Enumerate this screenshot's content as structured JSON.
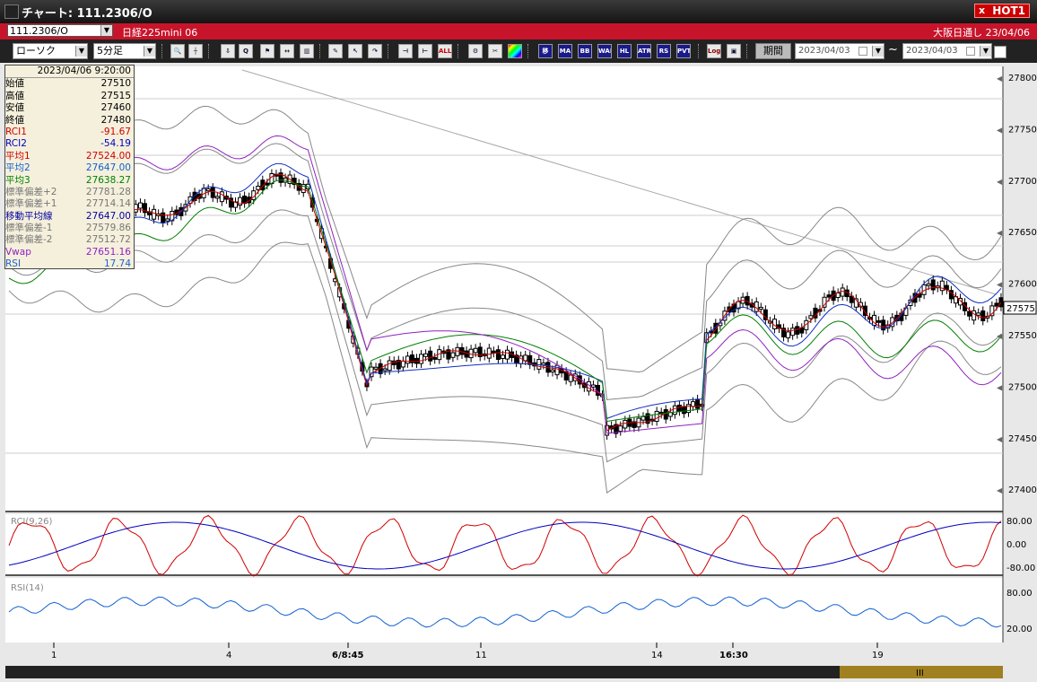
{
  "window": {
    "title": "チャート: 111.2306/O",
    "hot_label": "HOT1",
    "hot_close": "x"
  },
  "symbol": {
    "code": "111.2306/O",
    "name": "日経225mini 06",
    "market": "大阪日通し  23/04/06"
  },
  "toolbar": {
    "chart_type": "ローソク",
    "interval": "5分足",
    "period_button": "期間",
    "date_from": "2023/04/03",
    "date_to": "2023/04/03",
    "date_separator": "~",
    "buttons": [
      "zoom-icon",
      "cursor-icon",
      "drag-icon",
      "search-icon",
      "flag-icon",
      "expand-icon",
      "trash-icon",
      "pencil-icon",
      "pointer-icon",
      "redo-icon",
      "fit-left-icon",
      "fit-right-icon",
      "ALL",
      "settings-icon",
      "paint-icon",
      "color-icon",
      "移",
      "MA",
      "BB",
      "WAE",
      "HL",
      "ATR",
      "RS",
      "PVT",
      "Log",
      "export-icon"
    ],
    "button_labels": {
      "all": "ALL",
      "ido": "移",
      "ma": "MA",
      "bb": "BB",
      "wae": "WAE",
      "hl": "HL",
      "atr": "ATR",
      "rs": "RS",
      "pvt": "PVT",
      "log": "Log"
    }
  },
  "info_panel": {
    "datetime": "2023/04/06 9:20:00",
    "rows": [
      {
        "label": "始値",
        "value": "27510",
        "color": "#000000"
      },
      {
        "label": "高値",
        "value": "27515",
        "color": "#000000"
      },
      {
        "label": "安値",
        "value": "27460",
        "color": "#000000"
      },
      {
        "label": "終値",
        "value": "27480",
        "color": "#000000"
      },
      {
        "label": "RCI1",
        "value": "-91.67",
        "color": "#d00000"
      },
      {
        "label": "RCI2",
        "value": "-54.19",
        "color": "#0000c0"
      },
      {
        "label": "平均1",
        "value": "27524.00",
        "color": "#d00000"
      },
      {
        "label": "平均2",
        "value": "27647.00",
        "color": "#1060d0"
      },
      {
        "label": "平均3",
        "value": "27638.27",
        "color": "#008000"
      },
      {
        "label": "標準偏差+2",
        "value": "27781.28",
        "color": "#777777"
      },
      {
        "label": "標準偏差+1",
        "value": "27714.14",
        "color": "#777777"
      },
      {
        "label": "移動平均線",
        "value": "27647.00",
        "color": "#0000a0"
      },
      {
        "label": "標準偏差-1",
        "value": "27579.86",
        "color": "#777777"
      },
      {
        "label": "標準偏差-2",
        "value": "27512.72",
        "color": "#777777"
      },
      {
        "label": "Vwap",
        "value": "27651.16",
        "color": "#9020c0"
      },
      {
        "label": "RSI",
        "value": "17.74",
        "color": "#2060d0"
      }
    ]
  },
  "price_axis": {
    "ticks": [
      "27800",
      "27750",
      "27700",
      "27650",
      "27600",
      "27550",
      "27500",
      "27450",
      "27400"
    ],
    "current": "27575"
  },
  "rci_panel": {
    "title": "RCI(9,26)",
    "ticks": [
      "80.00",
      "0.00",
      "-80.00"
    ]
  },
  "rsi_panel": {
    "title": "RSI(14)",
    "ticks": [
      "80.00",
      "20.00"
    ]
  },
  "time_axis": {
    "ticks": [
      "1",
      "4",
      "6/8:45",
      "11",
      "14",
      "16:30",
      "19"
    ]
  },
  "scroll": {
    "thumb_label": "III"
  },
  "colors": {
    "title_red": "#c8142a",
    "candle_up": "#ffffff",
    "candle_down": "#000000",
    "rci1": "#d00000",
    "rci2": "#0000c0",
    "rsi": "#1060d0",
    "vwap": "#9020c0",
    "ma_fast": "#d00000",
    "ma_mid": "#1030c0",
    "ma_slow": "#008000",
    "bands": "#777777"
  }
}
